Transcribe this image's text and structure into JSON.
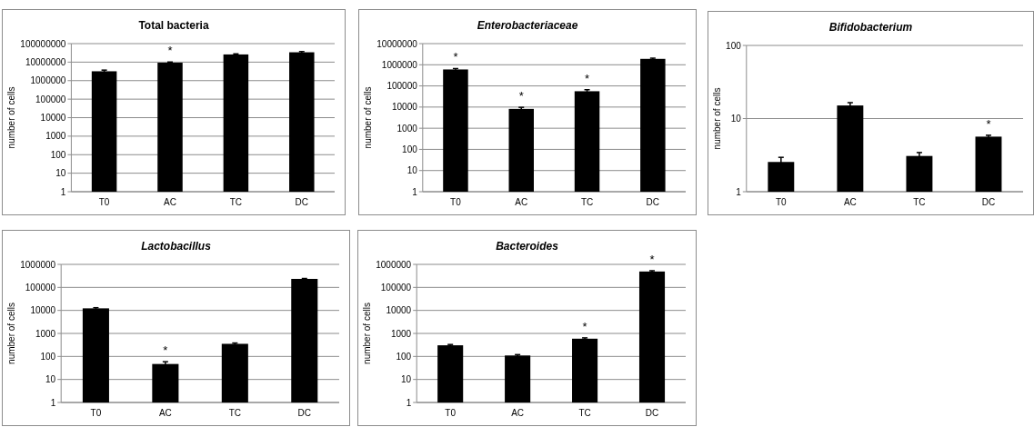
{
  "chart_data": [
    {
      "type": "bar",
      "title": "Total bacteria",
      "ylabel": "number of cells",
      "categories": [
        "T0",
        "AC",
        "TC",
        "DC"
      ],
      "values": [
        3200000,
        9300000,
        26000000,
        34000000
      ],
      "errors": [
        500000,
        800000,
        2000000,
        3000000
      ],
      "color": "#000000",
      "log": true,
      "ylim": [
        1,
        100000000
      ],
      "yticks": [
        1,
        10,
        100,
        1000,
        10000,
        100000,
        1000000,
        10000000,
        100000000
      ],
      "grid": "y",
      "value_labels": [
        null,
        "*",
        null,
        null
      ]
    },
    {
      "type": "bar",
      "title": "Enterobacteriaceae",
      "ylabel": "number of cells",
      "categories": [
        "T0",
        "AC",
        "TC",
        "DC"
      ],
      "values": [
        600000,
        8200,
        56000,
        1900000
      ],
      "errors": [
        60000,
        1500,
        10000,
        150000
      ],
      "color": "#000000",
      "log": true,
      "ylim": [
        1,
        10000000
      ],
      "yticks": [
        1,
        10,
        100,
        1000,
        10000,
        100000,
        1000000,
        10000000
      ],
      "grid": "y",
      "value_labels": [
        "*",
        "*",
        "*",
        null
      ]
    },
    {
      "type": "bar",
      "title": "Bifidobacterium",
      "ylabel": "number of cells",
      "categories": [
        "T0",
        "AC",
        "TC",
        "DC"
      ],
      "values": [
        2.55,
        15.1,
        3.08,
        5.66
      ],
      "errors": [
        0.4,
        1.4,
        0.35,
        0.25
      ],
      "color": "#000000",
      "log": true,
      "ylim": [
        1,
        100
      ],
      "yticks": [
        1,
        10,
        100
      ],
      "grid": "y",
      "value_labels": [
        null,
        null,
        null,
        "*"
      ]
    },
    {
      "type": "bar",
      "title": "Lactobacillus",
      "ylabel": "number of cells",
      "categories": [
        "T0",
        "AC",
        "TC",
        "DC"
      ],
      "values": [
        12300,
        47,
        353,
        234000
      ],
      "errors": [
        800,
        12,
        30,
        10000
      ],
      "color": "#000000",
      "log": true,
      "ylim": [
        1,
        1000000
      ],
      "yticks": [
        1,
        10,
        100,
        1000,
        10000,
        100000,
        1000000
      ],
      "grid": "y",
      "value_labels": [
        null,
        "*",
        null,
        null
      ]
    },
    {
      "type": "bar",
      "title": "Bacteroides",
      "ylabel": "number of cells",
      "categories": [
        "T0",
        "AC",
        "TC",
        "DC"
      ],
      "values": [
        305,
        110,
        590,
        490000
      ],
      "errors": [
        25,
        10,
        50,
        40000
      ],
      "color": "#000000",
      "log": true,
      "ylim": [
        1,
        1000000
      ],
      "yticks": [
        1,
        10,
        100,
        1000,
        10000,
        100000,
        1000000
      ],
      "grid": "y",
      "value_labels": [
        null,
        null,
        "*",
        "*"
      ]
    }
  ]
}
